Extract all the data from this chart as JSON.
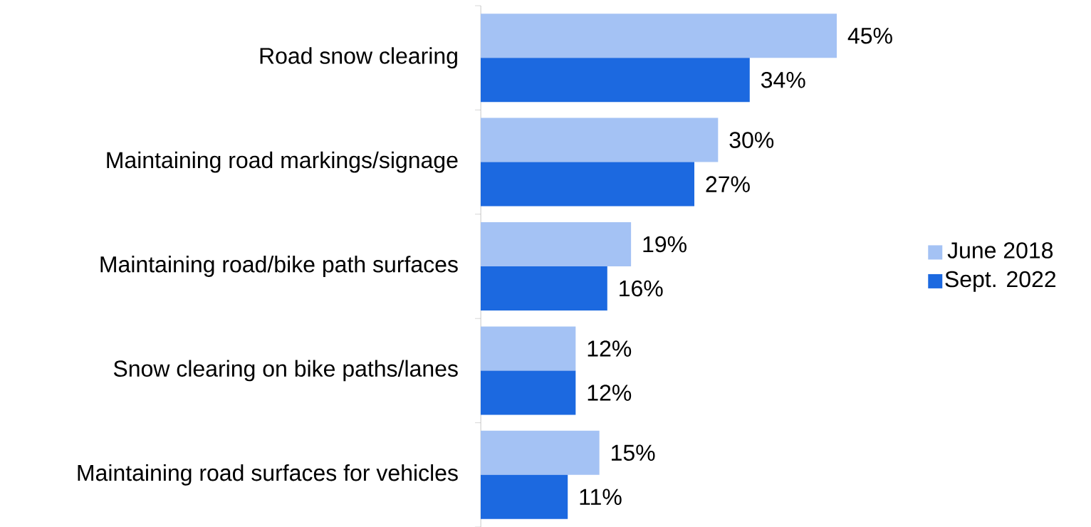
{
  "chart_data": {
    "type": "bar",
    "orientation": "horizontal",
    "categories": [
      "Road snow clearing",
      "Maintaining road markings/signage",
      "Maintaining road/bike path surfaces",
      "Snow clearing on bike paths/lanes",
      "Maintaining road surfaces for vehicles"
    ],
    "series": [
      {
        "name": "June 2018",
        "color": "#a4c2f4",
        "values": [
          45,
          30,
          19,
          12,
          15
        ],
        "value_labels": [
          "45%",
          "30%",
          "19%",
          "12%",
          "15%"
        ]
      },
      {
        "name": "Sept. 2022",
        "color": "#1c69e0",
        "values": [
          34,
          27,
          16,
          12,
          11
        ],
        "value_labels": [
          "34%",
          "27%",
          "16%",
          "12%",
          "11%"
        ]
      }
    ],
    "legend": "right"
  }
}
